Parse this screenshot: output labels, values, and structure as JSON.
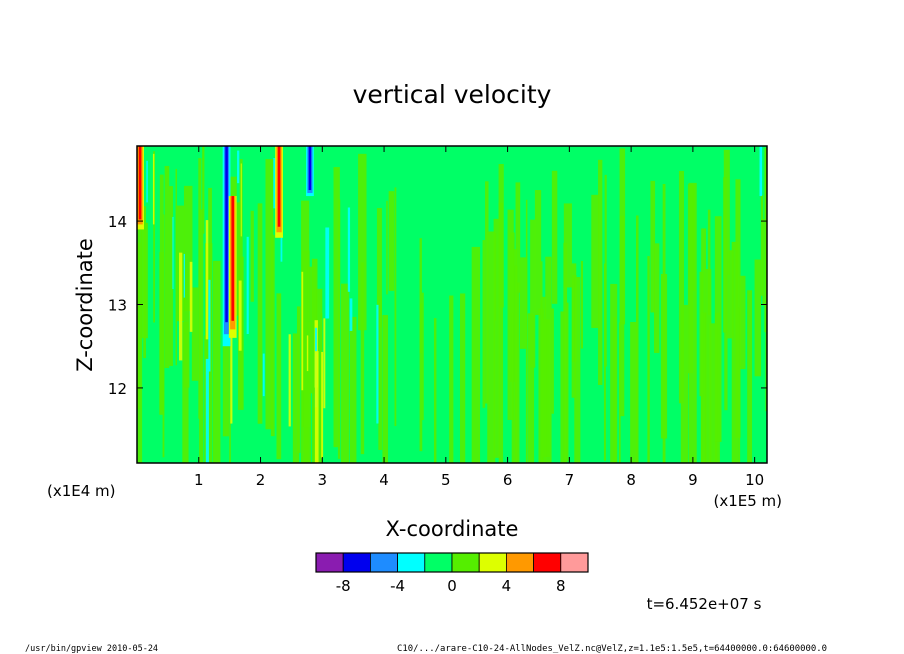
{
  "chart_data": {
    "type": "heatmap",
    "title": "vertical velocity",
    "xlabel": "X-coordinate",
    "ylabel": "Z-coordinate",
    "x_scale_note": "(x1E5 m)",
    "y_scale_note": "(x1E4 m)",
    "xlim": [
      0.0,
      10.2
    ],
    "ylim": [
      11.1,
      14.9
    ],
    "x_ticks": [
      "1",
      "2",
      "3",
      "4",
      "5",
      "6",
      "7",
      "8",
      "9",
      "10"
    ],
    "y_ticks": [
      "12",
      "13",
      "14"
    ],
    "colorbar": {
      "levels": [
        -10,
        -8,
        -6,
        -4,
        -2,
        0,
        2,
        4,
        6,
        8,
        10
      ],
      "colors": [
        "#8a1cb0",
        "#0000ee",
        "#1e8cff",
        "#00ffff",
        "#00ff66",
        "#55ee00",
        "#ddff00",
        "#ff9900",
        "#ff0000",
        "#ff9a9a"
      ],
      "tick_labels": [
        "-8",
        "-4",
        "0",
        "4",
        "8"
      ],
      "tick_values": [
        -8,
        -4,
        0,
        4,
        8
      ]
    },
    "features": [
      {
        "x": 1.45,
        "z_range": [
          12.5,
          14.9
        ],
        "sign": "negative",
        "peak": -7
      },
      {
        "x": 1.55,
        "z_range": [
          12.6,
          14.3
        ],
        "sign": "positive",
        "peak": 8
      },
      {
        "x": 2.3,
        "z_range": [
          13.8,
          14.9
        ],
        "sign": "positive",
        "peak": 8
      },
      {
        "x": 2.8,
        "z_range": [
          14.3,
          14.9
        ],
        "sign": "negative",
        "peak": -8
      },
      {
        "x": 0.05,
        "z_range": [
          13.9,
          14.9
        ],
        "sign": "positive",
        "peak": 8
      },
      {
        "x": 10.1,
        "z_range": [
          14.3,
          14.9
        ],
        "sign": "negative",
        "peak": -4
      }
    ]
  },
  "time_label": "t=6.452e+07 s",
  "footer": {
    "program": "/usr/bin/gpview   2010-05-24",
    "source": "C10/.../arare-C10-24-AllNodes_VelZ.nc@VelZ,z=1.1e5:1.5e5,t=64400000.0:64600000.0"
  }
}
